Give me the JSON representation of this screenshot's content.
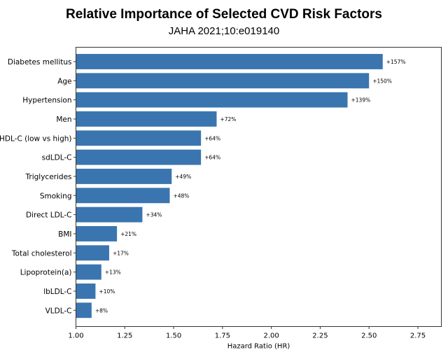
{
  "chart_data": {
    "type": "bar",
    "orientation": "horizontal",
    "title": "Relative Importance of Selected CVD Risk Factors",
    "subtitle": "JAHA 2021;10:e019140",
    "xlabel": "Hazard Ratio (HR)",
    "ylabel": "",
    "xlim": [
      1.0,
      2.87
    ],
    "xticks": [
      1.0,
      1.25,
      1.5,
      1.75,
      2.0,
      2.25,
      2.5,
      2.75
    ],
    "xtick_labels": [
      "1.00",
      "1.25",
      "1.50",
      "1.75",
      "2.00",
      "2.25",
      "2.50",
      "2.75"
    ],
    "grid": false,
    "bar_color": "#3a75b0",
    "categories": [
      "Diabetes mellitus",
      "Age",
      "Hypertension",
      "Men",
      "HDL-C (low vs high)",
      "sdLDL-C",
      "Triglycerides",
      "Smoking",
      "Direct LDL-C",
      "BMI",
      "Total cholesterol",
      "Lipoprotein(a)",
      "lbLDL-C",
      "VLDL-C"
    ],
    "values": [
      2.57,
      2.5,
      2.39,
      1.72,
      1.64,
      1.64,
      1.49,
      1.48,
      1.34,
      1.21,
      1.17,
      1.13,
      1.1,
      1.08
    ],
    "data_labels": [
      "+157%",
      "+150%",
      "+139%",
      "+72%",
      "+64%",
      "+64%",
      "+49%",
      "+48%",
      "+34%",
      "+21%",
      "+17%",
      "+13%",
      "+10%",
      "+8%"
    ]
  }
}
